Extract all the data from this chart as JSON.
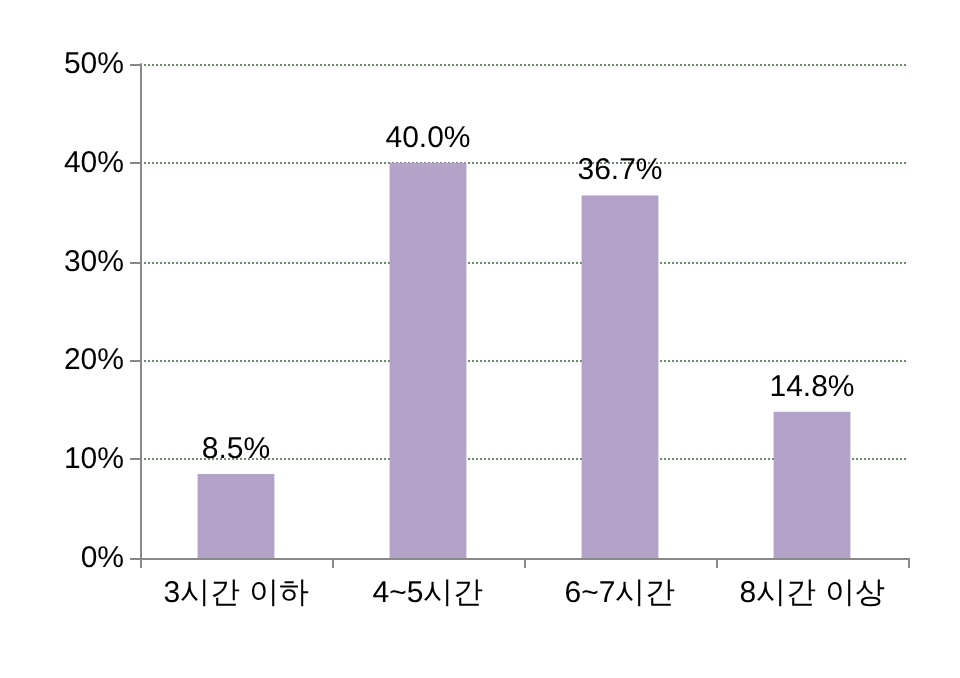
{
  "chart_data": {
    "type": "bar",
    "categories": [
      "3시간 이하",
      "4~5시간",
      "6~7시간",
      "8시간 이상"
    ],
    "values": [
      8.5,
      40.0,
      36.7,
      14.8
    ],
    "value_labels": [
      "8.5%",
      "40.0%",
      "36.7%",
      "14.8%"
    ],
    "color": "#b3a2c7",
    "ylim": [
      0,
      50
    ],
    "yticks": [
      {
        "value": 0,
        "label": "0%"
      },
      {
        "value": 10,
        "label": "10%"
      },
      {
        "value": 20,
        "label": "20%"
      },
      {
        "value": 30,
        "label": "30%"
      },
      {
        "value": 40,
        "label": "40%"
      },
      {
        "value": 50,
        "label": "50%"
      }
    ],
    "grid": "y"
  }
}
